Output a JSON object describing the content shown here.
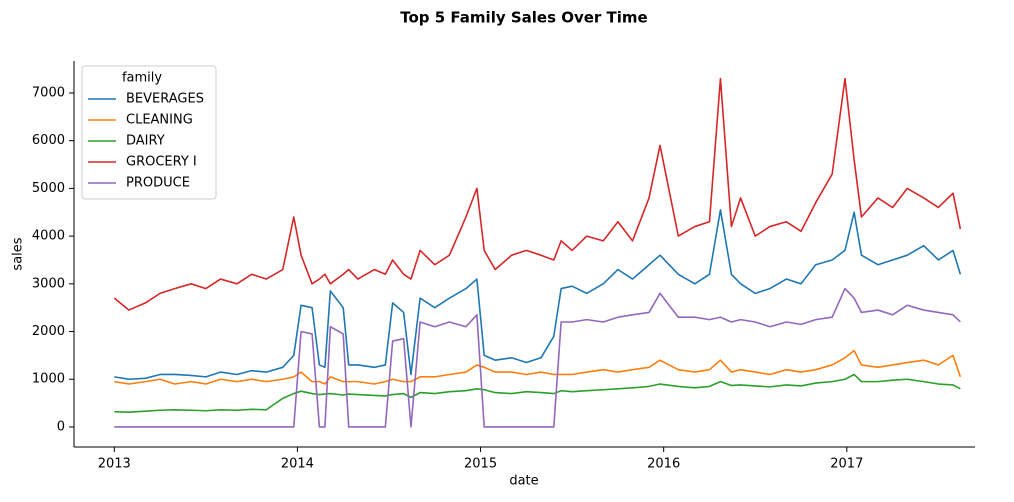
{
  "chart_data": {
    "type": "line",
    "title": "Top 5 Family Sales Over Time",
    "x_label": "date",
    "y_label": "sales",
    "legend_title": "family",
    "legend": "upper left",
    "grid": false,
    "x": [
      2013.0,
      2013.08,
      2013.17,
      2013.25,
      2013.33,
      2013.42,
      2013.5,
      2013.58,
      2013.67,
      2013.75,
      2013.83,
      2013.92,
      2013.98,
      2014.02,
      2014.08,
      2014.12,
      2014.15,
      2014.18,
      2014.25,
      2014.28,
      2014.33,
      2014.42,
      2014.48,
      2014.52,
      2014.58,
      2014.62,
      2014.67,
      2014.75,
      2014.83,
      2014.92,
      2014.98,
      2015.02,
      2015.08,
      2015.17,
      2015.25,
      2015.33,
      2015.4,
      2015.44,
      2015.5,
      2015.58,
      2015.67,
      2015.75,
      2015.83,
      2015.92,
      2015.98,
      2016.08,
      2016.17,
      2016.25,
      2016.31,
      2016.37,
      2016.42,
      2016.5,
      2016.58,
      2016.67,
      2016.75,
      2016.83,
      2016.92,
      2016.99,
      2017.04,
      2017.08,
      2017.17,
      2017.25,
      2017.33,
      2017.42,
      2017.5,
      2017.58,
      2017.62
    ],
    "xlim": [
      2012.78,
      2017.7
    ],
    "xticks": [
      2013,
      2014,
      2015,
      2016,
      2017
    ],
    "ylim": [
      -420,
      7670
    ],
    "yticks": [
      0,
      1000,
      2000,
      3000,
      4000,
      5000,
      6000,
      7000
    ],
    "series": [
      {
        "name": "BEVERAGES",
        "color": "#1f77b4",
        "values": [
          1050,
          1000,
          1020,
          1100,
          1100,
          1080,
          1050,
          1150,
          1100,
          1180,
          1150,
          1250,
          1500,
          2550,
          2500,
          1300,
          1250,
          2850,
          2500,
          1300,
          1300,
          1250,
          1300,
          2600,
          2400,
          1100,
          2700,
          2500,
          2700,
          2900,
          3100,
          1500,
          1400,
          1450,
          1350,
          1450,
          1900,
          2900,
          2950,
          2800,
          3000,
          3300,
          3100,
          3400,
          3600,
          3200,
          3000,
          3200,
          4550,
          3200,
          3000,
          2800,
          2900,
          3100,
          3000,
          3400,
          3500,
          3700,
          4500,
          3600,
          3400,
          3500,
          3600,
          3800,
          3500,
          3700,
          3200
        ]
      },
      {
        "name": "CLEANING",
        "color": "#ff7f0e",
        "values": [
          950,
          900,
          950,
          1000,
          900,
          950,
          900,
          1000,
          950,
          1000,
          950,
          1000,
          1050,
          1150,
          950,
          950,
          900,
          1050,
          950,
          950,
          950,
          900,
          950,
          1000,
          950,
          950,
          1050,
          1050,
          1100,
          1150,
          1300,
          1250,
          1150,
          1150,
          1100,
          1150,
          1100,
          1100,
          1100,
          1150,
          1200,
          1150,
          1200,
          1250,
          1400,
          1200,
          1150,
          1200,
          1400,
          1150,
          1200,
          1150,
          1100,
          1200,
          1150,
          1200,
          1300,
          1450,
          1600,
          1300,
          1250,
          1300,
          1350,
          1400,
          1300,
          1500,
          1050
        ]
      },
      {
        "name": "DAIRY",
        "color": "#2ca02c",
        "values": [
          320,
          310,
          330,
          350,
          360,
          350,
          340,
          360,
          350,
          370,
          360,
          600,
          700,
          750,
          700,
          680,
          690,
          700,
          670,
          690,
          680,
          660,
          650,
          680,
          700,
          620,
          720,
          700,
          740,
          760,
          800,
          780,
          720,
          700,
          740,
          720,
          700,
          760,
          740,
          760,
          780,
          800,
          820,
          850,
          900,
          850,
          820,
          850,
          950,
          870,
          880,
          860,
          840,
          880,
          860,
          920,
          950,
          1000,
          1100,
          950,
          950,
          980,
          1000,
          950,
          900,
          880,
          800
        ]
      },
      {
        "name": "GROCERY I",
        "color": "#d62728",
        "values": [
          2700,
          2450,
          2600,
          2800,
          2900,
          3000,
          2900,
          3100,
          3000,
          3200,
          3100,
          3300,
          4400,
          3600,
          3000,
          3100,
          3200,
          3000,
          3200,
          3300,
          3100,
          3300,
          3200,
          3500,
          3200,
          3100,
          3700,
          3400,
          3600,
          4400,
          5000,
          3700,
          3300,
          3600,
          3700,
          3600,
          3500,
          3900,
          3700,
          4000,
          3900,
          4300,
          3900,
          4800,
          5900,
          4000,
          4200,
          4300,
          7300,
          4200,
          4800,
          4000,
          4200,
          4300,
          4100,
          4700,
          5300,
          7300,
          5600,
          4400,
          4800,
          4600,
          5000,
          4800,
          4600,
          4900,
          4150
        ]
      },
      {
        "name": "PRODUCE",
        "color": "#9467bd",
        "values": [
          0,
          0,
          0,
          0,
          0,
          0,
          0,
          0,
          0,
          0,
          0,
          0,
          0,
          2000,
          1950,
          0,
          0,
          2100,
          1950,
          0,
          0,
          0,
          0,
          1800,
          1850,
          0,
          2200,
          2100,
          2200,
          2100,
          2350,
          0,
          0,
          0,
          0,
          0,
          0,
          2200,
          2200,
          2250,
          2200,
          2300,
          2350,
          2400,
          2800,
          2300,
          2300,
          2250,
          2300,
          2200,
          2250,
          2200,
          2100,
          2200,
          2150,
          2250,
          2300,
          2900,
          2700,
          2400,
          2450,
          2350,
          2550,
          2450,
          2400,
          2350,
          2200
        ]
      }
    ]
  }
}
